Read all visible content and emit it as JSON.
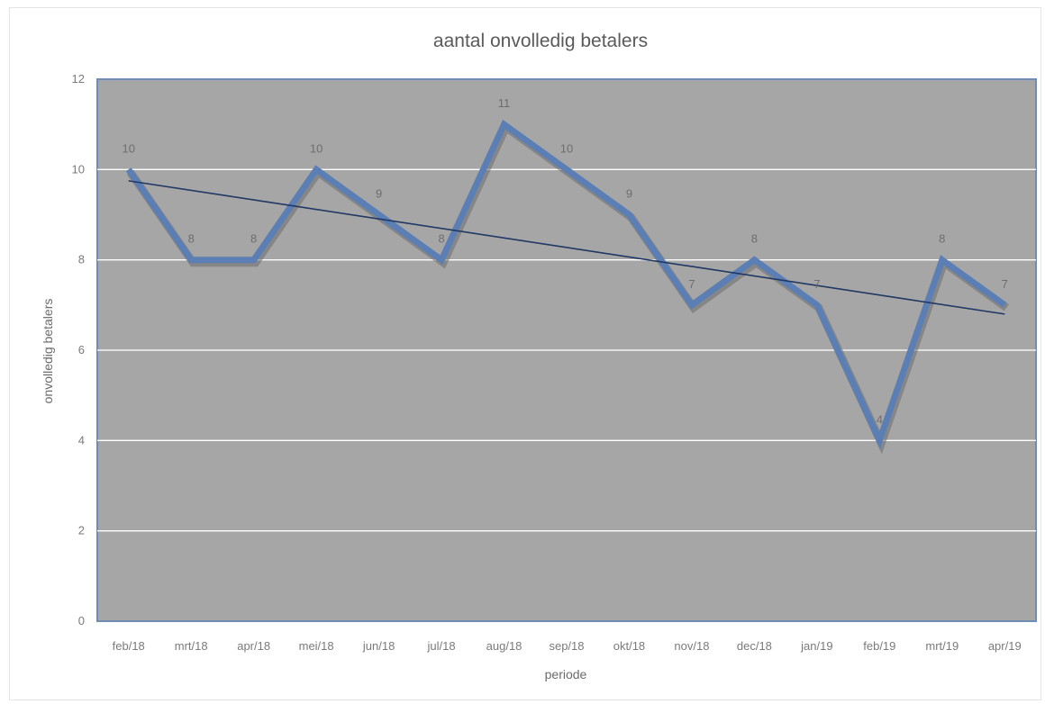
{
  "chart_data": {
    "type": "line",
    "title": "aantal onvolledig betalers",
    "xlabel": "periode",
    "ylabel": "onvolledig betalers",
    "categories": [
      "feb/18",
      "mrt/18",
      "apr/18",
      "mei/18",
      "jun/18",
      "jul/18",
      "aug/18",
      "sep/18",
      "okt/18",
      "nov/18",
      "dec/18",
      "jan/19",
      "feb/19",
      "mrt/19",
      "apr/19"
    ],
    "series": [
      {
        "values": [
          10,
          8,
          8,
          10,
          9,
          8,
          11,
          10,
          9,
          7,
          8,
          7,
          4,
          8,
          7
        ]
      }
    ],
    "data_labels": [
      "10",
      "8",
      "8",
      "10",
      "9",
      "8",
      "11",
      "10",
      "9",
      "7",
      "8",
      "7",
      "4",
      "8",
      "7"
    ],
    "trendline": {
      "type": "linear",
      "start": 9.75,
      "end": 6.8
    },
    "ylim": [
      0,
      12
    ],
    "yticks": [
      "0",
      "2",
      "4",
      "6",
      "8",
      "10",
      "12"
    ],
    "grid": true,
    "legend": "none",
    "colors": {
      "plot_background": "#a6a6a6",
      "line": "#5b7fb5",
      "line_shadow": "#6c6c6c",
      "trendline": "#203864",
      "gridline": "#ffffff",
      "plot_border": "#6f8cb4"
    }
  }
}
